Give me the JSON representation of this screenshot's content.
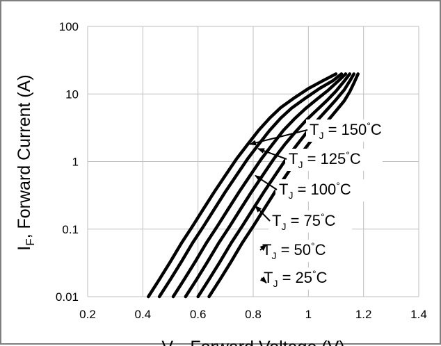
{
  "chart_data": {
    "type": "line",
    "title": "",
    "xlabel": {
      "main": "V",
      "subscript": "F",
      "rest": ", Forward Voltage (V)"
    },
    "ylabel": {
      "main": "I",
      "subscript": "F",
      "rest": ", Forward Current (A)"
    },
    "xlim": [
      0.2,
      1.4
    ],
    "ylim": [
      0.01,
      100
    ],
    "yscale": "log",
    "xticks": [
      "0.2",
      "0.4",
      "0.6",
      "0.8",
      "1",
      "1.2",
      "1.4"
    ],
    "yticks": [
      "0.01",
      "0.1",
      "1",
      "10",
      "100"
    ],
    "grid": true,
    "legend": "none",
    "series": [
      {
        "name": "T_J = 150°C",
        "label": {
          "main": "T",
          "sub": "J",
          "text": " = 150",
          "deg": "°",
          "unit": "C"
        },
        "x": [
          0.42,
          0.46,
          0.5,
          0.54,
          0.58,
          0.62,
          0.66,
          0.7,
          0.74,
          0.78,
          0.82,
          0.86,
          0.9,
          0.95,
          1.0,
          1.05,
          1.1
        ],
        "y": [
          0.01,
          0.018,
          0.033,
          0.062,
          0.11,
          0.2,
          0.36,
          0.63,
          1.1,
          1.8,
          2.9,
          4.4,
          6.3,
          8.8,
          12,
          15.5,
          19.8
        ]
      },
      {
        "name": "T_J = 125°C",
        "label": {
          "main": "T",
          "sub": "J",
          "text": " = 125",
          "deg": "°",
          "unit": "C"
        },
        "x": [
          0.46,
          0.5,
          0.54,
          0.58,
          0.62,
          0.66,
          0.7,
          0.74,
          0.78,
          0.82,
          0.86,
          0.9,
          0.94,
          0.99,
          1.04,
          1.09,
          1.12
        ],
        "y": [
          0.01,
          0.018,
          0.033,
          0.062,
          0.11,
          0.2,
          0.36,
          0.63,
          1.1,
          1.8,
          2.9,
          4.4,
          6.2,
          8.7,
          12,
          15.8,
          19.8
        ]
      },
      {
        "name": "T_J = 100°C",
        "label": {
          "main": "T",
          "sub": "J",
          "text": " = 100",
          "deg": "°",
          "unit": "C"
        },
        "x": [
          0.51,
          0.55,
          0.59,
          0.63,
          0.67,
          0.71,
          0.75,
          0.79,
          0.83,
          0.87,
          0.91,
          0.95,
          0.99,
          1.03,
          1.07,
          1.11,
          1.135
        ],
        "y": [
          0.01,
          0.018,
          0.033,
          0.062,
          0.11,
          0.2,
          0.36,
          0.63,
          1.1,
          1.8,
          2.9,
          4.3,
          6.1,
          8.3,
          11.2,
          15.8,
          19.8
        ]
      },
      {
        "name": "T_J = 75°C",
        "label": {
          "main": "T",
          "sub": "J",
          "text": " = 75",
          "deg": "°",
          "unit": "C"
        },
        "x": [
          0.555,
          0.595,
          0.635,
          0.675,
          0.715,
          0.755,
          0.795,
          0.835,
          0.875,
          0.915,
          0.955,
          0.995,
          1.035,
          1.07,
          1.1,
          1.13,
          1.15
        ],
        "y": [
          0.01,
          0.018,
          0.033,
          0.062,
          0.11,
          0.2,
          0.36,
          0.63,
          1.1,
          1.8,
          2.8,
          4.2,
          6.0,
          8.2,
          11,
          15.5,
          19.8
        ]
      },
      {
        "name": "T_J = 50°C",
        "label": {
          "main": "T",
          "sub": "J",
          "text": " = 50",
          "deg": "°",
          "unit": "C"
        },
        "x": [
          0.6,
          0.64,
          0.68,
          0.72,
          0.76,
          0.8,
          0.84,
          0.88,
          0.92,
          0.96,
          1.0,
          1.04,
          1.07,
          1.1,
          1.13,
          1.15,
          1.165
        ],
        "y": [
          0.01,
          0.018,
          0.033,
          0.062,
          0.11,
          0.2,
          0.36,
          0.63,
          1.1,
          1.8,
          2.9,
          4.4,
          6.0,
          8.2,
          11.5,
          15.5,
          19.8
        ]
      },
      {
        "name": "T_J = 25°C",
        "label": {
          "main": "T",
          "sub": "J",
          "text": " = 25",
          "deg": "°",
          "unit": "C"
        },
        "x": [
          0.64,
          0.68,
          0.72,
          0.76,
          0.8,
          0.84,
          0.88,
          0.92,
          0.96,
          1.0,
          1.04,
          1.07,
          1.1,
          1.13,
          1.15,
          1.165,
          1.18
        ],
        "y": [
          0.01,
          0.018,
          0.033,
          0.062,
          0.11,
          0.2,
          0.36,
          0.63,
          1.1,
          1.8,
          2.9,
          4.0,
          5.6,
          7.9,
          10.8,
          14.5,
          19.8
        ]
      }
    ]
  }
}
